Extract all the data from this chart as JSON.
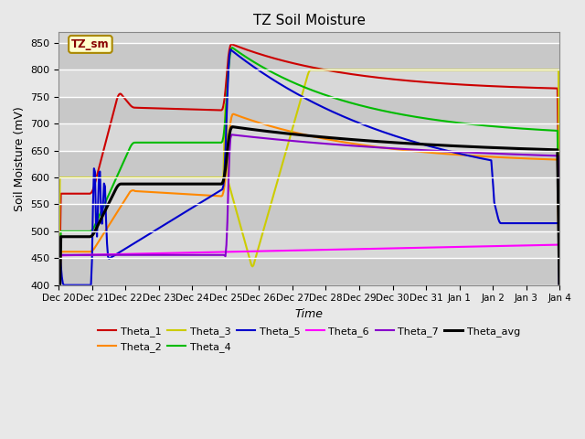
{
  "title": "TZ Soil Moisture",
  "xlabel": "Time",
  "ylabel": "Soil Moisture (mV)",
  "ylim": [
    400,
    870
  ],
  "yticks": [
    400,
    450,
    500,
    550,
    600,
    650,
    700,
    750,
    800,
    850
  ],
  "background_color": "#e8e8e8",
  "plot_bg_color": "#d4d4d4",
  "annotation_label": "TZ_sm",
  "series": {
    "Theta_1": {
      "color": "#cc0000",
      "lw": 1.5
    },
    "Theta_2": {
      "color": "#ff8800",
      "lw": 1.5
    },
    "Theta_3": {
      "color": "#cccc00",
      "lw": 1.5
    },
    "Theta_4": {
      "color": "#00bb00",
      "lw": 1.5
    },
    "Theta_5": {
      "color": "#0000cc",
      "lw": 1.5
    },
    "Theta_6": {
      "color": "#ff00ff",
      "lw": 1.5
    },
    "Theta_7": {
      "color": "#8800cc",
      "lw": 1.5
    },
    "Theta_avg": {
      "color": "#000000",
      "lw": 2.2
    }
  },
  "xtick_labels": [
    "Dec 20",
    "Dec 21",
    "Dec 22",
    "Dec 23",
    "Dec 24",
    "Dec 25",
    "Dec 26",
    "Dec 27",
    "Dec 28",
    "Dec 29",
    "Dec 30",
    "Dec 31",
    "Jan 1",
    "Jan 2",
    "Jan 3",
    "Jan 4"
  ],
  "n_points": 500
}
